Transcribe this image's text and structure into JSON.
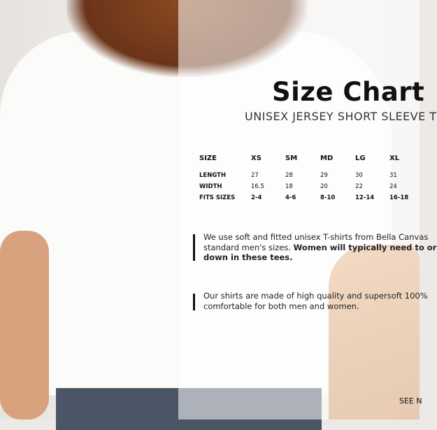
{
  "title": "Size Chart",
  "subtitle": "UNISEX JERSEY SHORT SLEEVE T",
  "table": {
    "headers": [
      "SIZE",
      "XS",
      "SM",
      "MD",
      "LG",
      "XL"
    ],
    "rows": [
      {
        "label": "LENGTH",
        "values": [
          "27",
          "28",
          "29",
          "30",
          "31"
        ]
      },
      {
        "label": "WIDTH",
        "values": [
          "16.5",
          "18",
          "20",
          "22",
          "24"
        ]
      },
      {
        "label": "FITS SIZES",
        "values": [
          "2-4",
          "4-6",
          "8-10",
          "12-14",
          "16-18"
        ]
      }
    ]
  },
  "note1": {
    "line1": "We use soft and fitted unisex T-shirts from Bella Canvas",
    "line2_plain": "standard men's sizes. ",
    "line2_bold": "Women will typically need to or",
    "line3_bold": "down in these tees."
  },
  "note2": {
    "line1": "Our shirts are made of high quality and supersoft 100%",
    "line2": "comfortable for both men and women."
  },
  "footer": "SEE N"
}
